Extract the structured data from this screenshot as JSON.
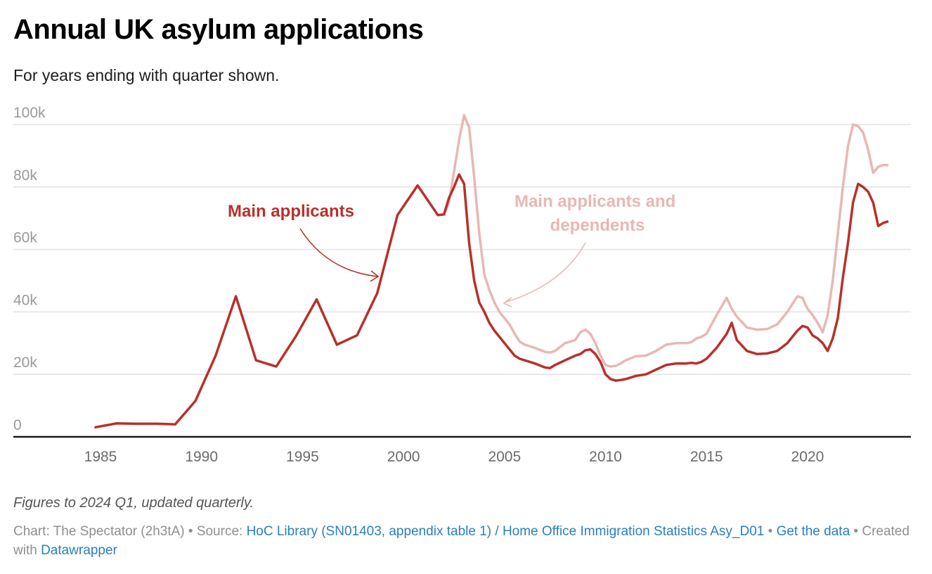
{
  "header": {
    "title": "Annual UK asylum applications",
    "subtitle": "For years ending with quarter shown."
  },
  "chart_data": {
    "type": "line",
    "title": "Annual UK asylum applications",
    "subtitle": "For years ending with quarter shown.",
    "xlabel": "",
    "ylabel": "",
    "xlim": [
      1981.8,
      2026.2
    ],
    "ylim": [
      0,
      100000
    ],
    "grid": true,
    "y_ticks": [
      {
        "value": 0,
        "label": "0"
      },
      {
        "value": 20000,
        "label": "20k"
      },
      {
        "value": 40000,
        "label": "40k"
      },
      {
        "value": 60000,
        "label": "60k"
      },
      {
        "value": 80000,
        "label": "80k"
      },
      {
        "value": 100000,
        "label": "100k"
      }
    ],
    "x_ticks": [
      {
        "value": 1985,
        "label": "1985"
      },
      {
        "value": 1990,
        "label": "1990"
      },
      {
        "value": 1995,
        "label": "1995"
      },
      {
        "value": 2000,
        "label": "2000"
      },
      {
        "value": 2005,
        "label": "2005"
      },
      {
        "value": 2010,
        "label": "2010"
      },
      {
        "value": 2015,
        "label": "2015"
      },
      {
        "value": 2020,
        "label": "2020"
      }
    ],
    "annotations": [
      {
        "text_lines": [
          "Main applicants"
        ],
        "series": "Main applicants"
      },
      {
        "text_lines": [
          "Main applicants and",
          "dependents"
        ],
        "series": "Main applicants and dependents"
      }
    ],
    "series": [
      {
        "name": "Main applicants and dependents",
        "color": "#e8b7b4",
        "x": [
          2002.0,
          2002.25,
          2002.5,
          2002.75,
          2003.0,
          2003.25,
          2003.5,
          2003.75,
          2004.0,
          2004.25,
          2004.5,
          2004.75,
          2005.0,
          2005.25,
          2005.5,
          2005.75,
          2006.0,
          2006.5,
          2007.0,
          2007.25,
          2007.5,
          2008.0,
          2008.5,
          2008.75,
          2009.0,
          2009.25,
          2009.5,
          2009.75,
          2010.0,
          2010.25,
          2010.5,
          2010.75,
          2011.0,
          2011.5,
          2012.0,
          2012.5,
          2013.0,
          2013.5,
          2014.0,
          2014.25,
          2014.5,
          2014.75,
          2015.0,
          2015.5,
          2016.0,
          2016.25,
          2016.5,
          2017.0,
          2017.5,
          2018.0,
          2018.5,
          2019.0,
          2019.25,
          2019.5,
          2019.75,
          2020.0,
          2020.25,
          2020.5,
          2020.75,
          2021.0,
          2021.25,
          2021.5,
          2021.75,
          2022.0,
          2022.25,
          2022.5,
          2022.75,
          2023.0,
          2023.25,
          2023.5,
          2023.75,
          2024.0
        ],
        "y": [
          71000,
          75000,
          85000,
          95000,
          103000,
          99000,
          83000,
          65000,
          52000,
          47000,
          43000,
          40000,
          38000,
          36000,
          33000,
          30500,
          29500,
          28500,
          27200,
          27000,
          27500,
          30000,
          31000,
          33500,
          34300,
          33000,
          30000,
          26000,
          23000,
          22500,
          22700,
          23500,
          24500,
          25800,
          26000,
          27500,
          29500,
          30000,
          30000,
          30300,
          31500,
          32000,
          33000,
          39000,
          44500,
          41000,
          38500,
          35000,
          34300,
          34500,
          36000,
          40000,
          42500,
          45000,
          44500,
          41000,
          39000,
          36500,
          33500,
          39000,
          50000,
          65000,
          80000,
          93000,
          100000,
          99500,
          97500,
          92000,
          84500,
          86500,
          87000,
          87000
        ]
      },
      {
        "name": "Main applicants",
        "color": "#b7312c",
        "x": [
          1984.7,
          1985.8,
          1986.8,
          1987.8,
          1988.7,
          1989.7,
          1990.7,
          1991.7,
          1992.7,
          1993.7,
          1994.7,
          1995.7,
          1996.7,
          1997.7,
          1998.7,
          1999.7,
          2000.7,
          2001.7,
          2002.0,
          2002.25,
          2002.5,
          2002.75,
          2003.0,
          2003.25,
          2003.5,
          2003.75,
          2004.0,
          2004.25,
          2004.5,
          2004.75,
          2005.0,
          2005.25,
          2005.5,
          2005.75,
          2006.0,
          2006.5,
          2007.0,
          2007.25,
          2007.5,
          2008.0,
          2008.5,
          2008.75,
          2009.0,
          2009.25,
          2009.5,
          2009.75,
          2010.0,
          2010.25,
          2010.5,
          2010.75,
          2011.0,
          2011.5,
          2012.0,
          2012.5,
          2013.0,
          2013.5,
          2014.0,
          2014.25,
          2014.5,
          2014.75,
          2015.0,
          2015.5,
          2016.0,
          2016.25,
          2016.5,
          2017.0,
          2017.5,
          2018.0,
          2018.5,
          2019.0,
          2019.25,
          2019.5,
          2019.75,
          2020.0,
          2020.25,
          2020.5,
          2020.75,
          2021.0,
          2021.25,
          2021.5,
          2021.75,
          2022.0,
          2022.25,
          2022.5,
          2022.75,
          2023.0,
          2023.25,
          2023.5,
          2023.75,
          2024.0
        ],
        "y": [
          3000,
          4300,
          4200,
          4200,
          4000,
          11500,
          26000,
          45000,
          24500,
          22500,
          32500,
          44000,
          29500,
          32500,
          46000,
          71000,
          80500,
          71000,
          71200,
          76500,
          80000,
          84000,
          81000,
          62000,
          50000,
          43000,
          40000,
          36500,
          34000,
          32000,
          30000,
          28000,
          26000,
          25000,
          24500,
          23500,
          22200,
          22000,
          23000,
          24500,
          26000,
          26500,
          27700,
          28000,
          26500,
          24000,
          20000,
          18500,
          18000,
          18200,
          18500,
          19500,
          20000,
          21500,
          23000,
          23500,
          23500,
          23700,
          23500,
          24000,
          25000,
          28500,
          33000,
          36500,
          31000,
          27500,
          26500,
          26700,
          27500,
          30000,
          32000,
          34000,
          35500,
          35000,
          32500,
          31500,
          30000,
          27500,
          31500,
          38000,
          51000,
          62000,
          75000,
          81000,
          80000,
          78500,
          75000,
          67500,
          68500,
          69000
        ]
      }
    ]
  },
  "notes": "Figures to 2024 Q1, updated quarterly.",
  "footer": {
    "chart_prefix": "Chart: The Spectator (2h3tA) • Source: ",
    "source_link": "HoC Library (SN01403, appendix table 1) / Home Office Immigration Statistics Asy_D01",
    "separator1": " • ",
    "get_data_link": "Get the data",
    "separator2": " • Created with ",
    "datawrapper_link": "Datawrapper"
  }
}
